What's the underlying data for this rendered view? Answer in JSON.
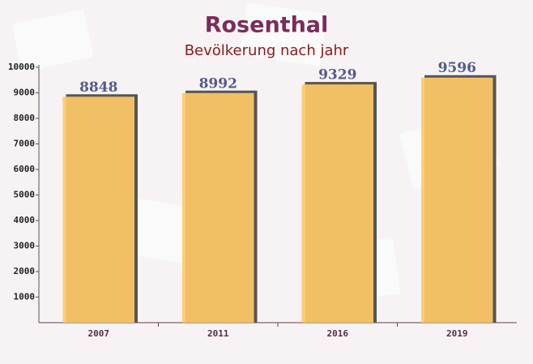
{
  "chart_data": {
    "type": "bar",
    "title": "Rosenthal",
    "subtitle": "Bevölkerung nach jahr",
    "categories": [
      "2007",
      "2011",
      "2016",
      "2019"
    ],
    "values": [
      8848,
      8992,
      9329,
      9596
    ],
    "color": "#ffc966",
    "ylim": [
      0,
      10000
    ],
    "yticks": [
      1000,
      2000,
      3000,
      4000,
      5000,
      6000,
      7000,
      8000,
      9000,
      10000
    ],
    "grid": false
  }
}
